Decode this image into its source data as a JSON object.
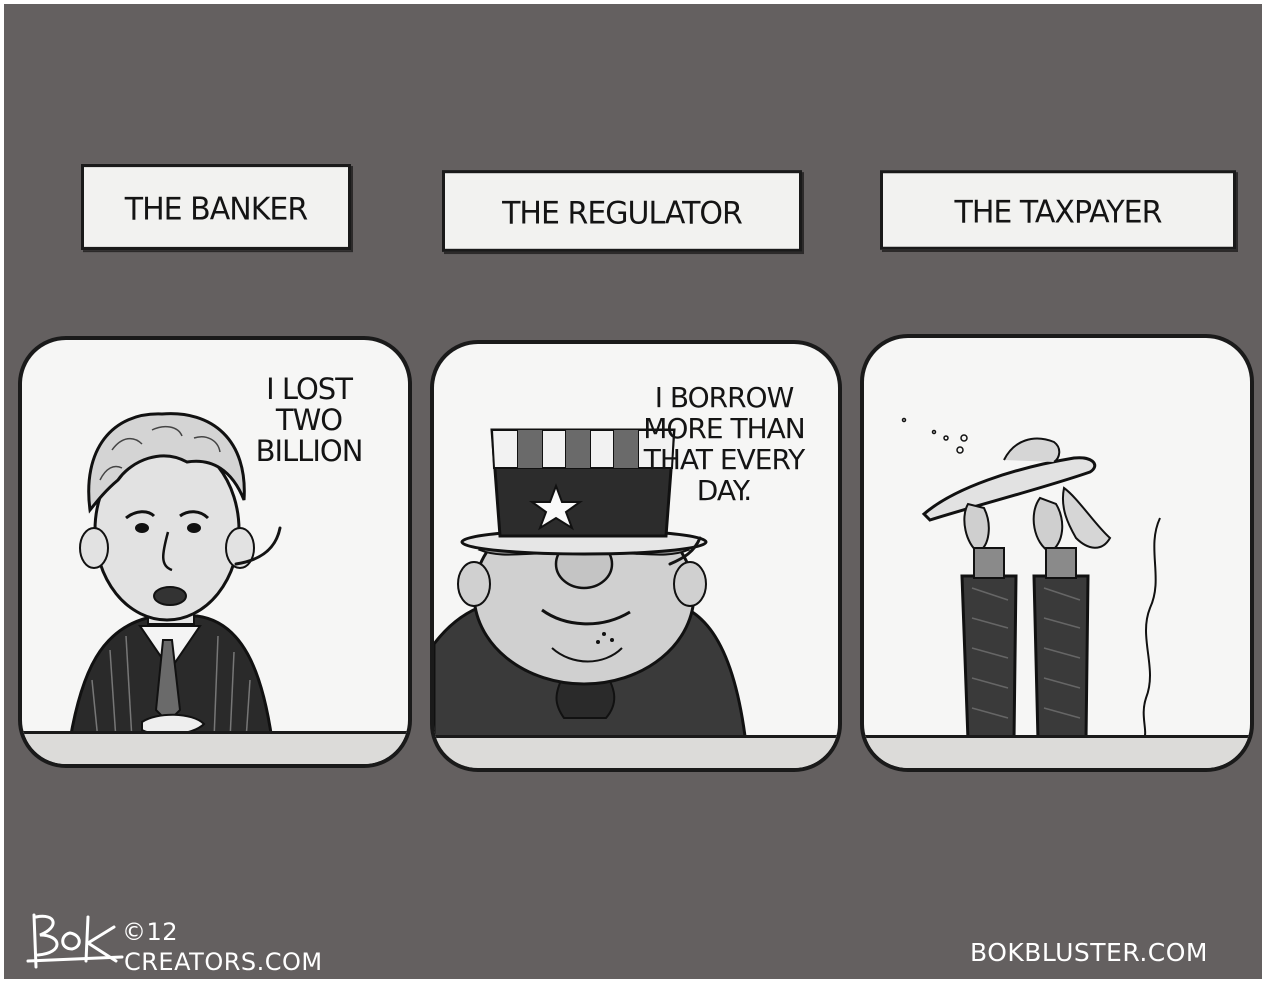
{
  "colors": {
    "background": "#646060",
    "panel": "#f6f6f5",
    "ink": "#141414",
    "desk": "#dcdbd9"
  },
  "panels": [
    {
      "caption": "THE BANKER",
      "speech": [
        "I LOST",
        "TWO",
        "BILLION"
      ],
      "figure": "banker-figure"
    },
    {
      "caption": "THE REGULATOR",
      "speech": [
        "I BORROW",
        "MORE THAN",
        "THAT EVERY",
        "DAY."
      ],
      "figure": "uncle-sam-figure"
    },
    {
      "caption": "THE TAXPAYER",
      "speech": [],
      "figure": "upside-down-taxpayer-figure"
    }
  ],
  "credits": {
    "signature": "Bok",
    "copyright": "©12",
    "syndicate": "CREATORS.COM",
    "website": "BOKBLUSTER.COM"
  }
}
